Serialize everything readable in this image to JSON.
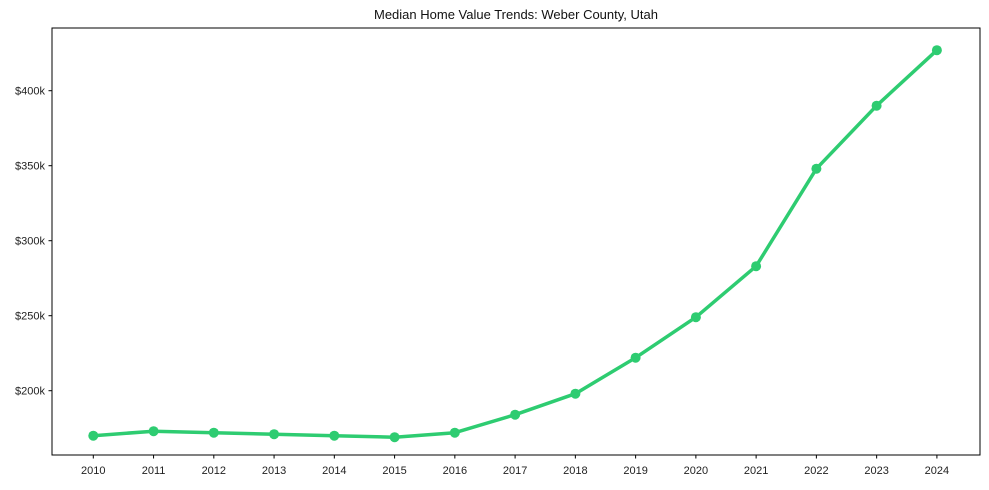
{
  "chart_data": {
    "type": "line",
    "title": "Median Home Value Trends: Weber County, Utah",
    "x": [
      2010,
      2011,
      2012,
      2013,
      2014,
      2015,
      2016,
      2017,
      2018,
      2019,
      2020,
      2021,
      2022,
      2023,
      2024
    ],
    "xtick_labels": [
      "2010",
      "2011",
      "2012",
      "2013",
      "2014",
      "2015",
      "2016",
      "2017",
      "2018",
      "2019",
      "2020",
      "2021",
      "2022",
      "2023",
      "2024"
    ],
    "series": [
      {
        "name": "median-home-value",
        "values_usd": [
          170000,
          173000,
          172000,
          171000,
          170000,
          169000,
          172000,
          184000,
          198000,
          222000,
          249000,
          283000,
          348000,
          390000,
          427000
        ]
      }
    ],
    "yticks": {
      "values_usd": [
        200000,
        250000,
        300000,
        350000,
        400000
      ],
      "labels": [
        "$200k",
        "$250k",
        "$300k",
        "$350k",
        "$400k"
      ]
    },
    "ylim_usd": [
      157000,
      442000
    ],
    "xlabel": "",
    "ylabel": "",
    "grid": false,
    "legend": "none",
    "line_color": "#2ecc71",
    "marker": "circle",
    "axis_color": "#000000",
    "background_color": "#ffffff"
  }
}
